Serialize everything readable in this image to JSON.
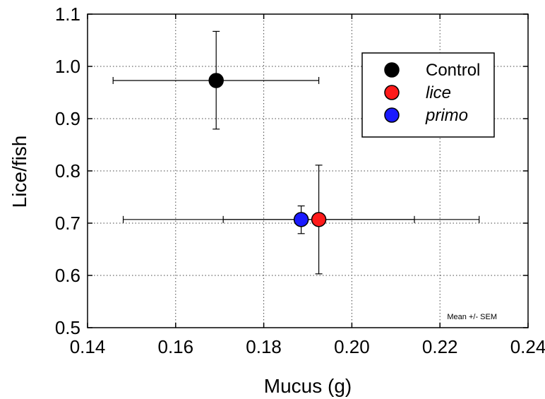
{
  "chart_data": {
    "type": "scatter",
    "xlabel": "Mucus (g)",
    "ylabel": "Lice/fish",
    "xlim": [
      0.14,
      0.24
    ],
    "ylim": [
      0.5,
      1.1
    ],
    "x_ticks": [
      0.14,
      0.16,
      0.18,
      0.2,
      0.22,
      0.24
    ],
    "x_tick_labels": [
      "0.14",
      "0.16",
      "0.18",
      "0.20",
      "0.22",
      "0.24"
    ],
    "y_ticks": [
      0.5,
      0.6,
      0.7,
      0.8,
      0.9,
      1.0,
      1.1
    ],
    "y_tick_labels": [
      "0.5",
      "0.6",
      "0.7",
      "0.8",
      "0.9",
      "1.0",
      "1.1"
    ],
    "grid": true,
    "legend_position": "top-right",
    "note": "Mean +/- SEM",
    "series": [
      {
        "name": "Control",
        "color": "#000000",
        "italic": false,
        "x": 0.1692,
        "y": 0.973,
        "xerr_low": 0.1458,
        "xerr_high": 0.1925,
        "yerr_low": 0.88,
        "yerr_high": 1.067
      },
      {
        "name": "lice",
        "color": "#ff1a1a",
        "italic": true,
        "x": 0.1925,
        "y": 0.707,
        "xerr_low": 0.1708,
        "xerr_high": 0.2142,
        "yerr_low": 0.603,
        "yerr_high": 0.811
      },
      {
        "name": "primo",
        "color": "#1a1aff",
        "italic": true,
        "x": 0.1885,
        "y": 0.707,
        "xerr_low": 0.1481,
        "xerr_high": 0.2289,
        "yerr_low": 0.68,
        "yerr_high": 0.733
      }
    ]
  }
}
